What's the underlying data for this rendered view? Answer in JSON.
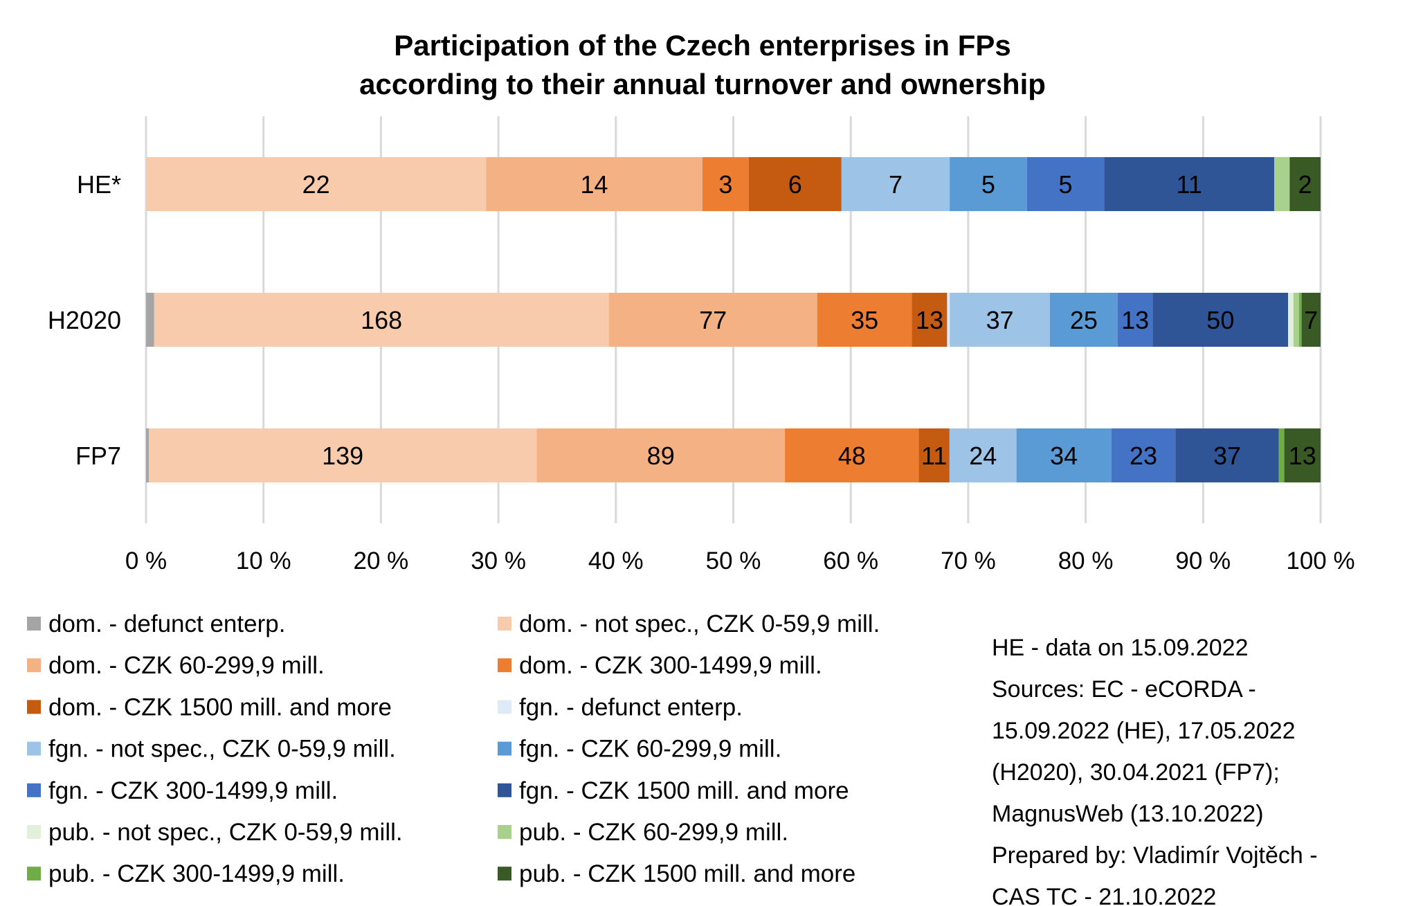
{
  "chart_data": {
    "type": "bar",
    "orientation": "horizontal",
    "stacking": "percent",
    "title": "Participation of the Czech enterprises in FPs",
    "subtitle": "according to their annual turnover and ownership",
    "title_lines": [
      "Participation of the Czech enterprises in FPs",
      "according to their annual turnover and ownership"
    ],
    "xlabel": "",
    "ylabel": "",
    "xlim": [
      0,
      100
    ],
    "x_ticks": [
      "0 %",
      "10 %",
      "20 %",
      "30 %",
      "40 %",
      "50 %",
      "60 %",
      "70 %",
      "80 %",
      "90 %",
      "100 %"
    ],
    "grid": true,
    "legend_position": "bottom",
    "categories": [
      "HE*",
      "H2020",
      "FP7"
    ],
    "series": [
      {
        "name": "dom. - defunct enterp.",
        "color": "#A5A5A5",
        "values": [
          0,
          3,
          1
        ],
        "show_labels": false
      },
      {
        "name": "dom. - not spec., CZK 0-59,9 mill.",
        "color": "#F8CBAD",
        "values": [
          22,
          168,
          139
        ],
        "show_labels": true
      },
      {
        "name": "dom. - CZK 60-299,9 mill.",
        "color": "#F4B183",
        "values": [
          14,
          77,
          89
        ],
        "show_labels": true
      },
      {
        "name": "dom. - CZK 300-1499,9 mill.",
        "color": "#ED7D31",
        "values": [
          3,
          35,
          48
        ],
        "show_labels": true
      },
      {
        "name": "dom. - CZK 1500 mill. and more",
        "color": "#C55A11",
        "values": [
          6,
          13,
          11
        ],
        "show_labels": true
      },
      {
        "name": "fgn. - defunct enterp.",
        "color": "#DEEBF7",
        "values": [
          0,
          1,
          0
        ],
        "show_labels": false
      },
      {
        "name": "fgn. - not spec., CZK 0-59,9 mill.",
        "color": "#9DC3E6",
        "values": [
          7,
          37,
          24
        ],
        "show_labels": true
      },
      {
        "name": "fgn. - CZK 60-299,9 mill.",
        "color": "#5B9BD5",
        "values": [
          5,
          25,
          34
        ],
        "show_labels": true
      },
      {
        "name": "fgn. - CZK 300-1499,9 mill.",
        "color": "#4472C4",
        "values": [
          5,
          13,
          23
        ],
        "show_labels": true
      },
      {
        "name": "fgn. - CZK 1500 mill. and more",
        "color": "#2F5597",
        "values": [
          11,
          50,
          37
        ],
        "show_labels": true
      },
      {
        "name": "pub. - not spec., CZK 0-59,9 mill.",
        "color": "#E2F0D9",
        "values": [
          0,
          2,
          0
        ],
        "show_labels": false
      },
      {
        "name": "pub. - CZK 60-299,9 mill.",
        "color": "#A9D18E",
        "values": [
          1,
          2,
          0
        ],
        "show_labels": false
      },
      {
        "name": "pub. - CZK 300-1499,9 mill.",
        "color": "#70AD47",
        "values": [
          0,
          1,
          2
        ],
        "show_labels": false
      },
      {
        "name": "pub. - CZK 1500 mill. and more",
        "color": "#3A5A25",
        "values": [
          2,
          7,
          13
        ],
        "show_labels": true
      }
    ],
    "notes": [
      "HE - data on 15.09.2022",
      "Sources: EC - eCORDA -",
      "15.09.2022 (HE), 17.05.2022",
      "(H2020), 30.04.2021 (FP7);",
      "MagnusWeb (13.10.2022)",
      "Prepared by: Vladimír Vojtěch -",
      "CAS TC - 21.10.2022"
    ]
  }
}
